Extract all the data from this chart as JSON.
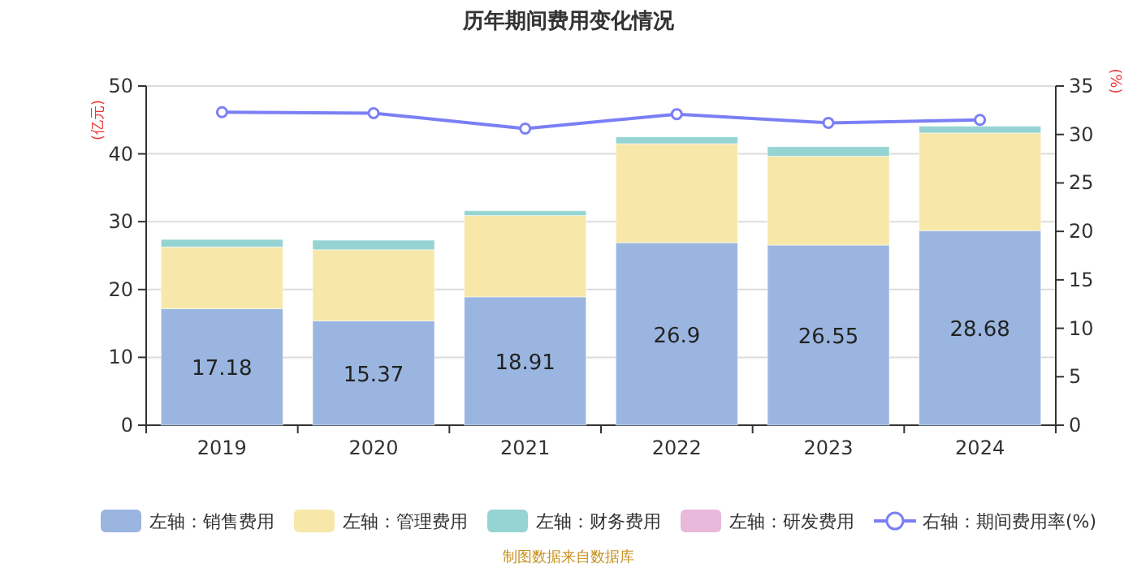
{
  "chart_data": {
    "type": "bar",
    "title": "历年期间费用变化情况",
    "categories": [
      "2019",
      "2020",
      "2021",
      "2022",
      "2023",
      "2024"
    ],
    "stacked": true,
    "ylabel": "(亿元)",
    "y2label": "(%)",
    "ylim": [
      0,
      50
    ],
    "yticks": [
      0,
      10,
      20,
      30,
      40,
      50
    ],
    "y2lim": [
      0,
      35
    ],
    "y2ticks": [
      0,
      5,
      10,
      15,
      20,
      25,
      30,
      35
    ],
    "grid": "y",
    "legend": "bottom",
    "annotations": [
      "制图数据来自数据库"
    ],
    "series": [
      {
        "name": "左轴：销售费用",
        "color": "#9ab6e0",
        "values": [
          17.18,
          15.37,
          18.91,
          26.9,
          26.55,
          28.68
        ],
        "value_labels": [
          "17.18",
          "15.37",
          "18.91",
          "26.9",
          "26.55",
          "28.68"
        ]
      },
      {
        "name": "左轴：管理费用",
        "color": "#f7e7a9",
        "values": [
          9.1,
          10.5,
          12.0,
          14.6,
          13.1,
          14.4
        ]
      },
      {
        "name": "左轴：财务费用",
        "color": "#95d4d3",
        "values": [
          1.1,
          1.4,
          0.7,
          1.0,
          1.4,
          1.0
        ]
      },
      {
        "name": "左轴：研发费用",
        "color": "#e8b9da",
        "values": [
          0,
          0,
          0,
          0,
          0,
          0
        ]
      },
      {
        "name": "右轴：期间费用率(%)",
        "type": "line",
        "axis": "y2",
        "marker": "circle",
        "color": "#7b7ff5",
        "values": [
          32.3,
          32.2,
          30.6,
          32.1,
          31.2,
          31.5
        ]
      }
    ]
  }
}
